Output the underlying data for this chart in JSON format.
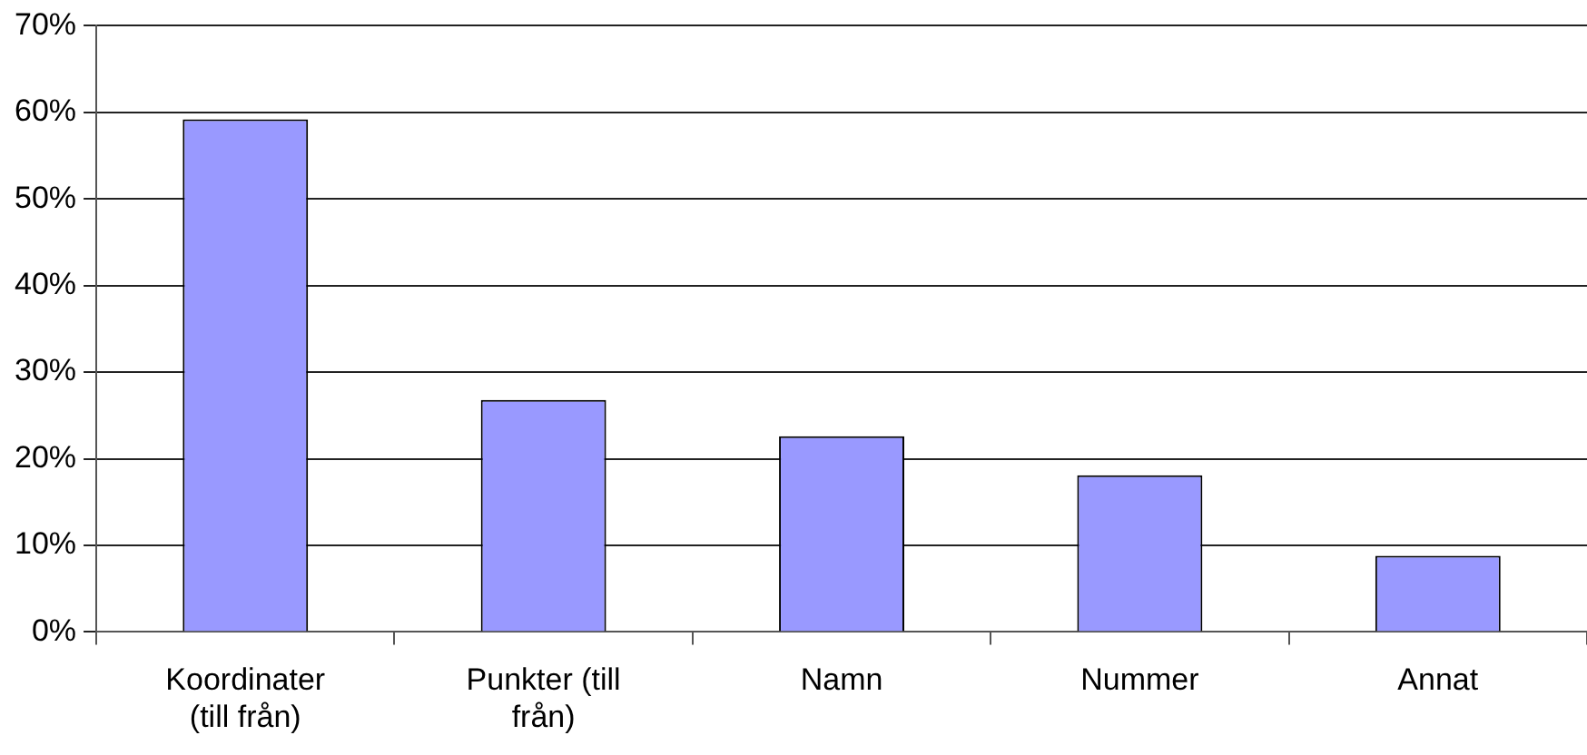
{
  "chart_data": {
    "type": "bar",
    "categories": [
      "Koordinater (till från)",
      "Punkter (till från)",
      "Namn",
      "Nummer",
      "Annat"
    ],
    "values": [
      59.2,
      26.8,
      22.6,
      18.1,
      8.8
    ],
    "color": "#9999ff",
    "ylim": [
      0,
      70
    ],
    "yticks": [
      {
        "value": 0,
        "label": "0%"
      },
      {
        "value": 10,
        "label": "10%"
      },
      {
        "value": 20,
        "label": "20%"
      },
      {
        "value": 30,
        "label": "30%"
      },
      {
        "value": 40,
        "label": "40%"
      },
      {
        "value": 50,
        "label": "50%"
      },
      {
        "value": 60,
        "label": "60%"
      },
      {
        "value": 70,
        "label": "70%"
      }
    ],
    "grid": "y",
    "legend": false
  }
}
